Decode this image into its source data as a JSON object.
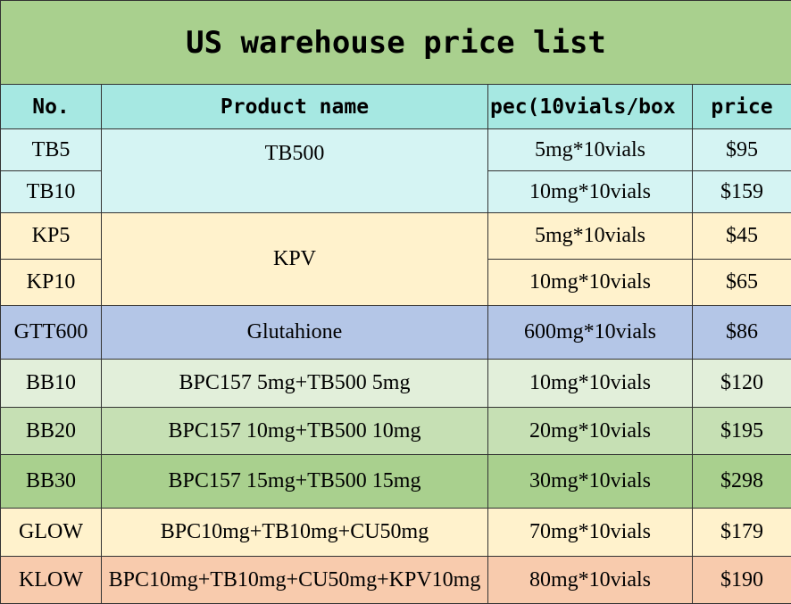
{
  "title": "US warehouse price list",
  "headers": {
    "no": "No.",
    "product": "Product name",
    "spec": "pec(10vials/box",
    "price": "price"
  },
  "colors": {
    "title": "#a9d08e",
    "header": "#a6e8e2",
    "tb": "#d5f4f3",
    "kp": "#fff2cc",
    "gtt": "#b4c6e7",
    "bb10": "#e2efda",
    "bb20": "#c6e0b4",
    "bb30": "#a9d08e",
    "glow": "#fff2cc",
    "klow": "#f8cbad"
  },
  "rows": {
    "tb5": {
      "no": "TB5",
      "product": "TB500",
      "spec": "5mg*10vials",
      "price": "$95"
    },
    "tb10": {
      "no": "TB10",
      "spec": "10mg*10vials",
      "price": "$159"
    },
    "kp5": {
      "no": "KP5",
      "product": "KPV",
      "spec": "5mg*10vials",
      "price": "$45"
    },
    "kp10": {
      "no": "KP10",
      "spec": "10mg*10vials",
      "price": "$65"
    },
    "gtt600": {
      "no": "GTT600",
      "product": "Glutahione",
      "spec": "600mg*10vials",
      "price": "$86"
    },
    "bb10": {
      "no": "BB10",
      "product": "BPC157 5mg+TB500 5mg",
      "spec": "10mg*10vials",
      "price": "$120"
    },
    "bb20": {
      "no": "BB20",
      "product": "BPC157 10mg+TB500 10mg",
      "spec": "20mg*10vials",
      "price": "$195"
    },
    "bb30": {
      "no": "BB30",
      "product": "BPC157 15mg+TB500 15mg",
      "spec": "30mg*10vials",
      "price": "$298"
    },
    "glow": {
      "no": "GLOW",
      "product": "BPC10mg+TB10mg+CU50mg",
      "spec": "70mg*10vials",
      "price": "$179"
    },
    "klow": {
      "no": "KLOW",
      "product": "BPC10mg+TB10mg+CU50mg+KPV10mg",
      "spec": "80mg*10vials",
      "price": "$190"
    }
  }
}
